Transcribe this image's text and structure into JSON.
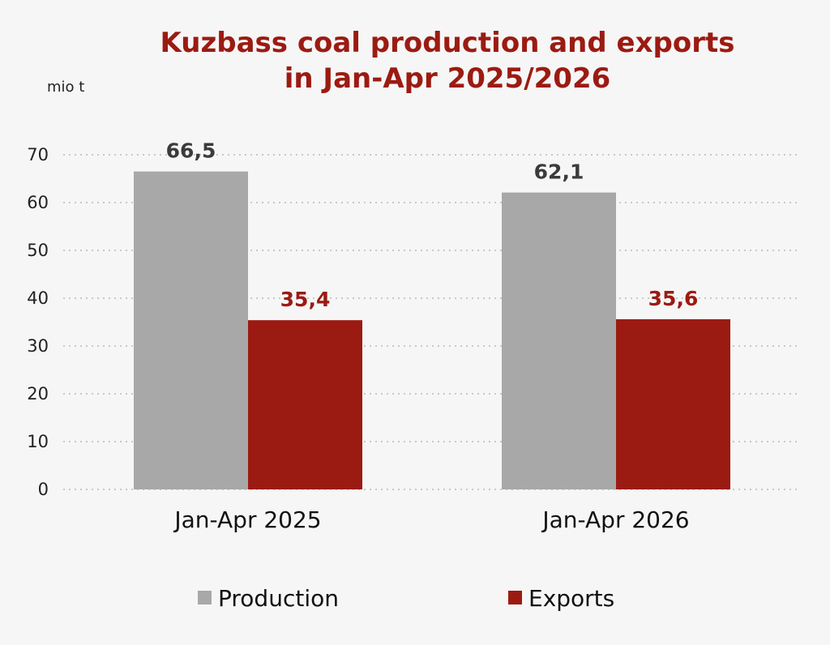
{
  "chart_data": {
    "type": "bar",
    "title_lines": [
      "Kuzbass coal production and exports",
      "in Jan-Apr 2025/2026"
    ],
    "unit_label": "mio t",
    "categories": [
      "Jan-Apr 2025",
      "Jan-Apr 2026"
    ],
    "series": [
      {
        "name": "Production",
        "color": "#a8a8a8",
        "label_color": "#3b3b3b",
        "values": [
          66.5,
          62.1
        ],
        "labels": [
          "66,5",
          "62,1"
        ]
      },
      {
        "name": "Exports",
        "color": "#9b1b12",
        "label_color": "#9b1b12",
        "values": [
          35.4,
          35.6
        ],
        "labels": [
          "35,4",
          "35,6"
        ]
      }
    ],
    "ylim": [
      0,
      70
    ],
    "yticks": [
      0,
      10,
      20,
      30,
      40,
      50,
      60,
      70
    ],
    "grid": true,
    "legend_position": "bottom"
  }
}
